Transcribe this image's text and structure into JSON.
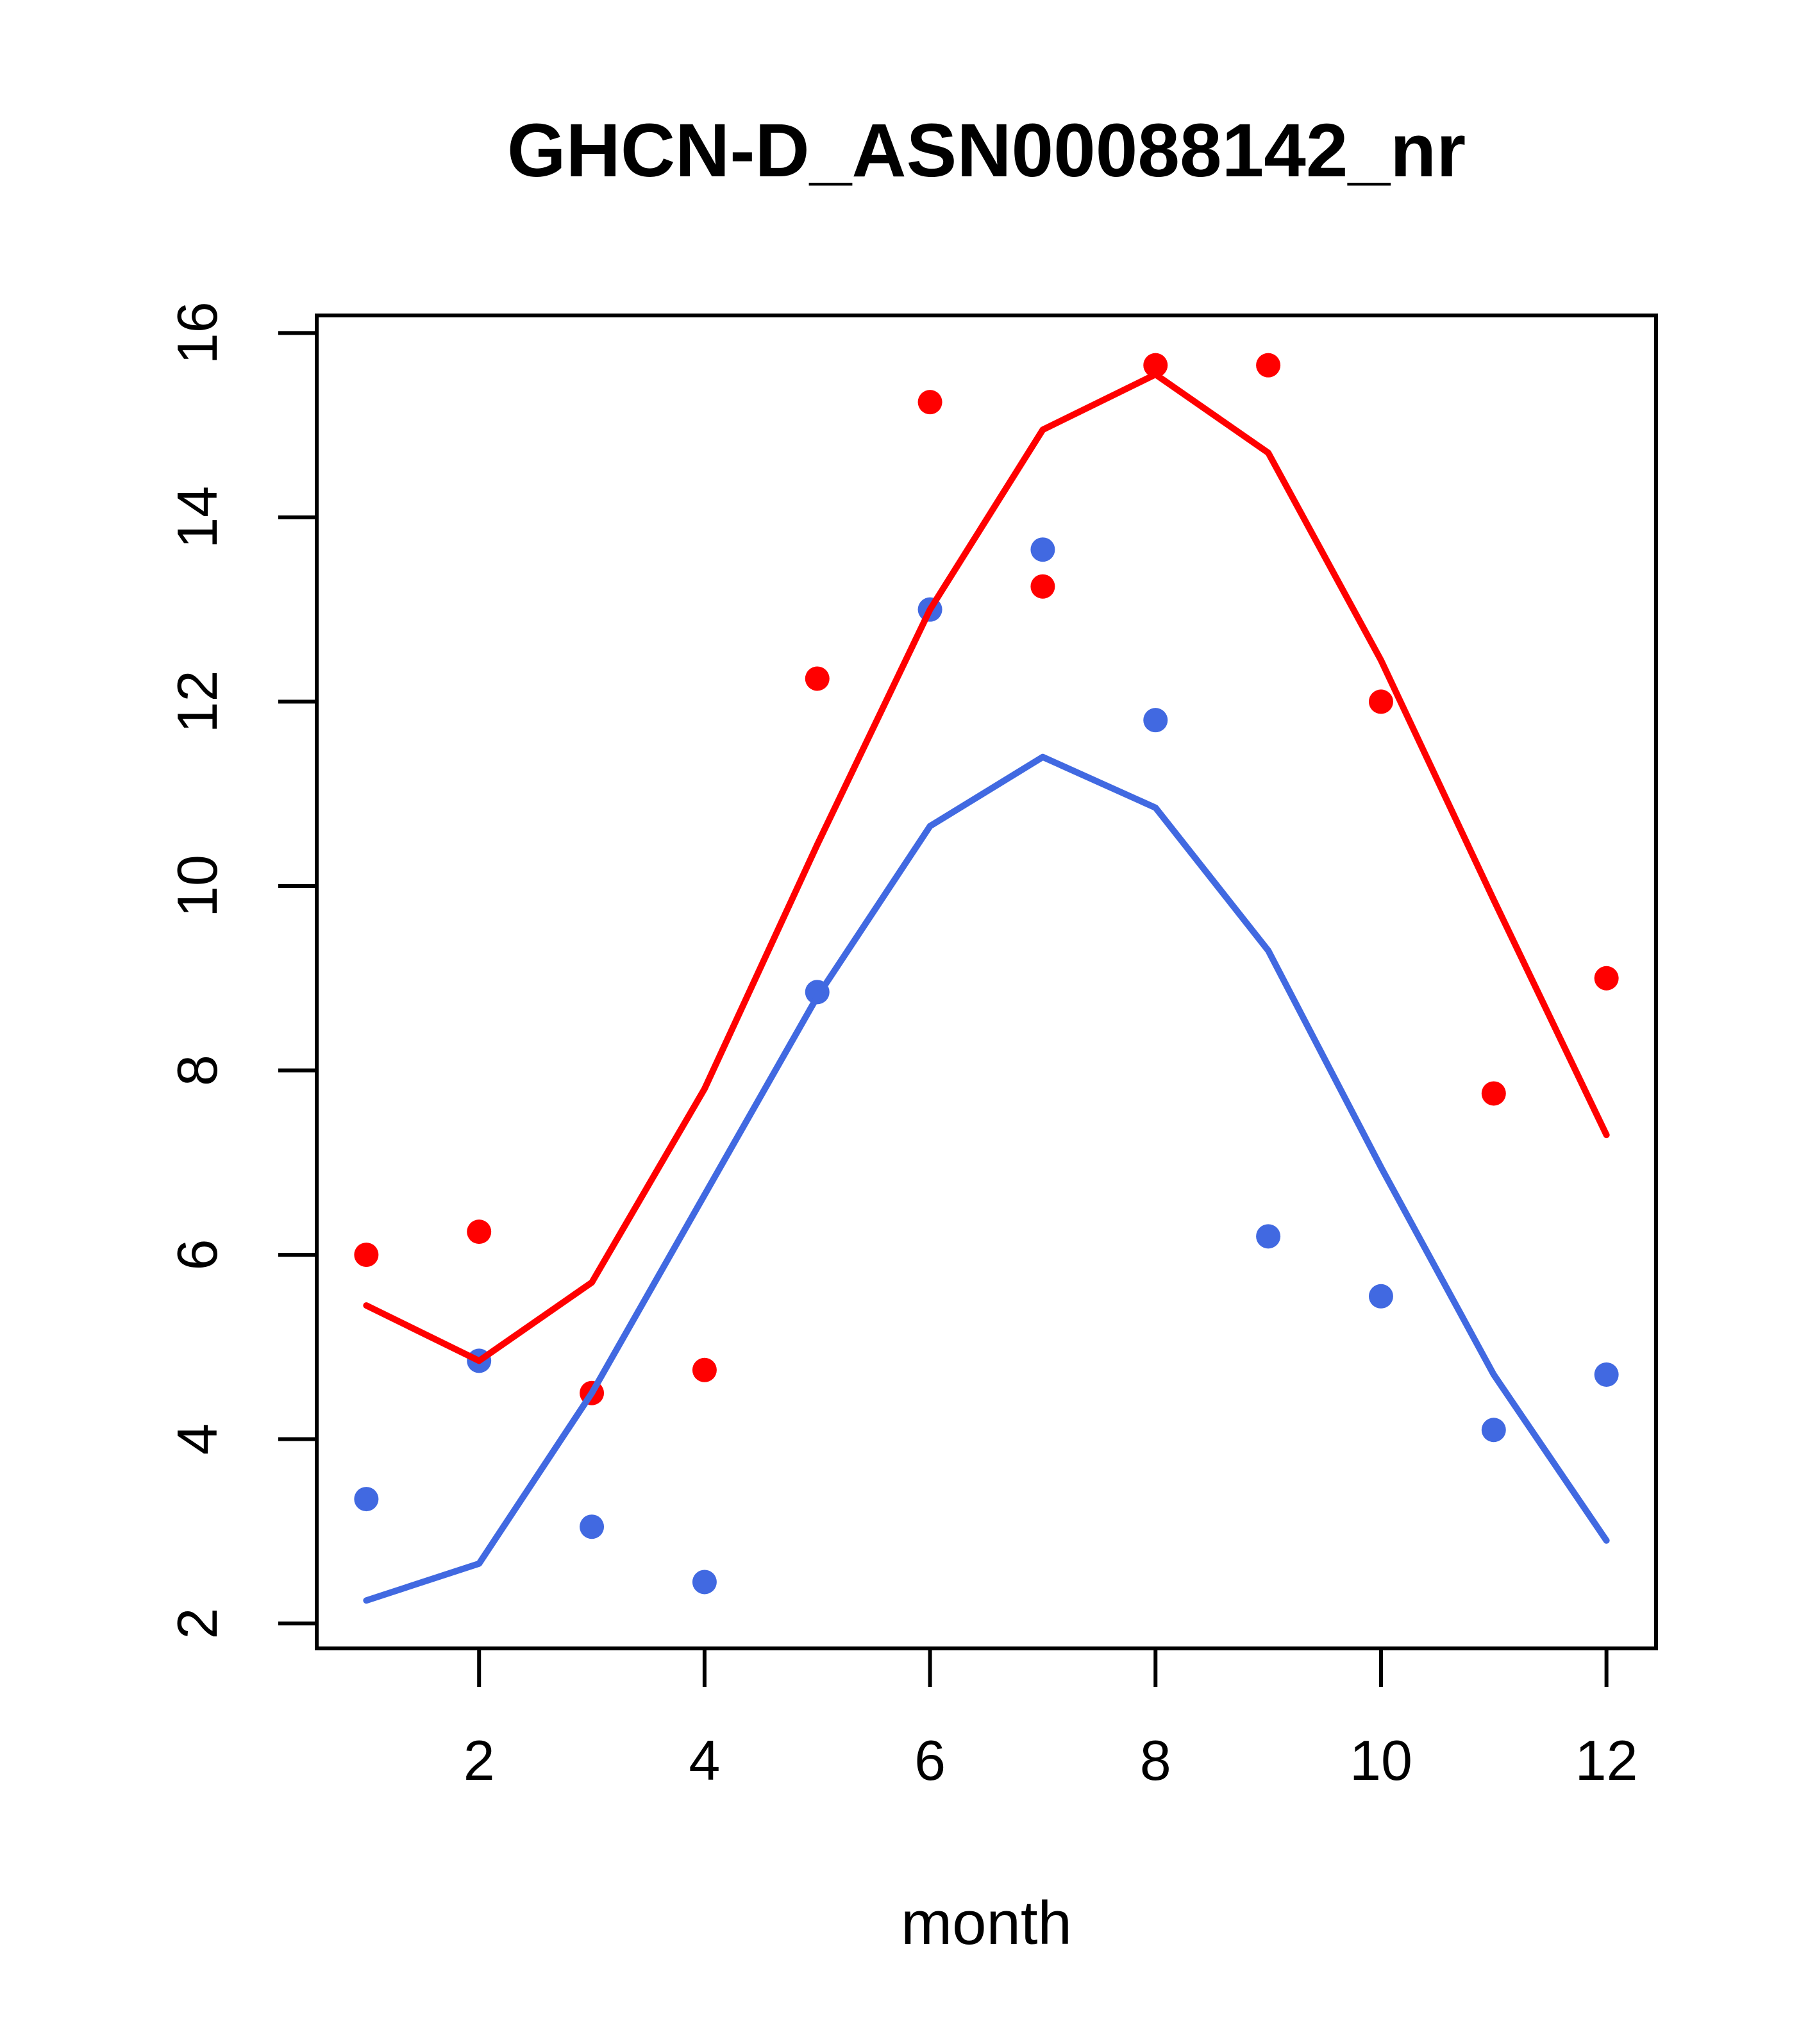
{
  "chart_data": {
    "type": "scatter",
    "title": "GHCN-D_ASN00088142_nr",
    "xlabel": "month",
    "ylabel": "",
    "x": [
      1,
      2,
      3,
      4,
      5,
      6,
      7,
      8,
      9,
      10,
      11,
      12
    ],
    "xlim": [
      0.56,
      12.44
    ],
    "ylim": [
      1.73,
      16.19
    ],
    "x_ticks": [
      2,
      4,
      6,
      8,
      10,
      12
    ],
    "y_ticks": [
      2,
      4,
      6,
      8,
      10,
      12,
      14,
      16
    ],
    "grid": false,
    "legend": "none",
    "colors": {
      "red_series": "#ff0000",
      "blue_series": "#4169e1",
      "axis": "#000000",
      "background": "#ffffff"
    },
    "series": [
      {
        "name": "red-points",
        "kind": "points",
        "color": "#ff0000",
        "values": [
          6.0,
          6.25,
          4.5,
          4.75,
          12.25,
          15.25,
          13.25,
          15.65,
          15.65,
          12.0,
          7.75,
          9.0
        ]
      },
      {
        "name": "blue-points",
        "kind": "points",
        "color": "#4169e1",
        "values": [
          3.35,
          4.85,
          3.05,
          2.45,
          8.85,
          13.0,
          13.65,
          11.8,
          6.2,
          5.55,
          4.1,
          4.7
        ]
      },
      {
        "name": "red-smooth-line",
        "kind": "line",
        "color": "#ff0000",
        "values": [
          5.45,
          4.85,
          5.7,
          7.8,
          10.45,
          13.0,
          14.95,
          15.55,
          14.7,
          12.45,
          9.85,
          7.3
        ]
      },
      {
        "name": "blue-smooth-line",
        "kind": "line",
        "color": "#4169e1",
        "values": [
          2.25,
          2.65,
          4.5,
          6.65,
          8.8,
          10.65,
          11.4,
          10.85,
          9.3,
          6.95,
          4.7,
          2.9
        ]
      }
    ]
  }
}
